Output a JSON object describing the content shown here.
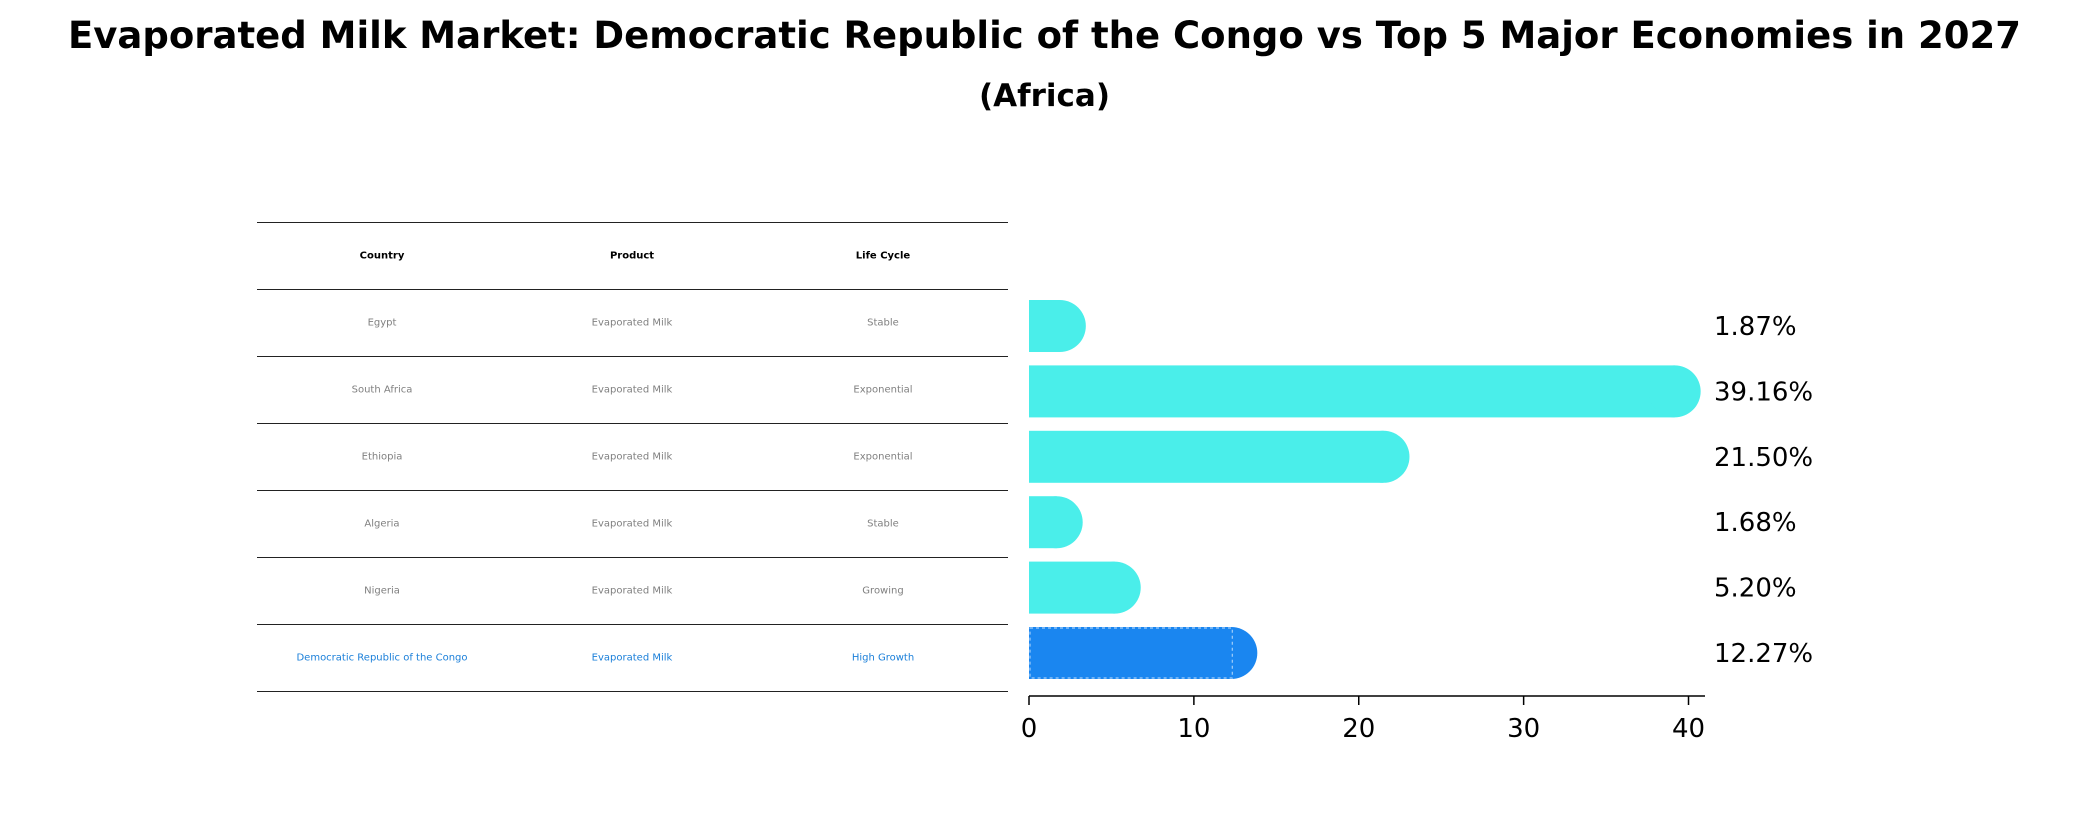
{
  "title": "Evaporated Milk Market: Democratic Republic of the Congo vs Top 5 Major Economies in 2027",
  "subtitle": "(Africa)",
  "colors": {
    "bar": "#4aeeea",
    "highlight": "#1a86f0",
    "highlight_text": "#1a7fd9",
    "body_text": "#808080"
  },
  "table": {
    "headers": [
      "Country",
      "Product",
      "Life Cycle"
    ],
    "rows": [
      [
        "Egypt",
        "Evaporated Milk",
        "Stable"
      ],
      [
        "South Africa",
        "Evaporated Milk",
        "Exponential"
      ],
      [
        "Ethiopia",
        "Evaporated Milk",
        "Exponential"
      ],
      [
        "Algeria",
        "Evaporated Milk",
        "Stable"
      ],
      [
        "Nigeria",
        "Evaporated Milk",
        "Growing"
      ],
      [
        "Democratic Republic of the Congo",
        "Evaporated Milk",
        "High Growth"
      ]
    ],
    "highlight_row": 5
  },
  "chart_data": {
    "type": "bar",
    "orientation": "horizontal",
    "categories": [
      "Egypt",
      "South Africa",
      "Ethiopia",
      "Algeria",
      "Nigeria",
      "Democratic Republic of the Congo"
    ],
    "values": [
      1.87,
      39.16,
      21.5,
      1.68,
      5.2,
      12.27
    ],
    "value_labels": [
      "1.87%",
      "39.16%",
      "21.50%",
      "1.68%",
      "5.20%",
      "12.27%"
    ],
    "xlim": [
      0,
      41
    ],
    "xticks": [
      0,
      10,
      20,
      30,
      40
    ],
    "highlight_index": 5,
    "grid": false
  }
}
